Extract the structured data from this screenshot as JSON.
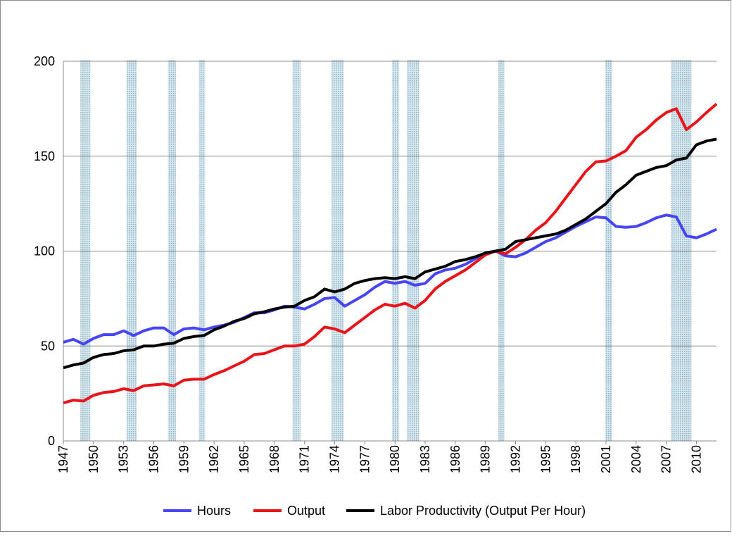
{
  "chart_data": {
    "type": "line",
    "x": [
      1947,
      1948,
      1949,
      1950,
      1951,
      1952,
      1953,
      1954,
      1955,
      1956,
      1957,
      1958,
      1959,
      1960,
      1961,
      1962,
      1963,
      1964,
      1965,
      1966,
      1967,
      1968,
      1969,
      1970,
      1971,
      1972,
      1973,
      1974,
      1975,
      1976,
      1977,
      1978,
      1979,
      1980,
      1981,
      1982,
      1983,
      1984,
      1985,
      1986,
      1987,
      1988,
      1989,
      1990,
      1991,
      1992,
      1993,
      1994,
      1995,
      1996,
      1997,
      1998,
      1999,
      2000,
      2001,
      2002,
      2003,
      2004,
      2005,
      2006,
      2007,
      2008,
      2009,
      2010,
      2011,
      2012
    ],
    "series": [
      {
        "name": "Hours",
        "color": "#4646f5",
        "values": [
          52,
          53.5,
          51,
          54,
          56,
          56,
          58,
          55.5,
          58,
          59.5,
          59.5,
          56,
          59,
          59.5,
          58.5,
          60,
          61,
          62.5,
          65,
          67.5,
          67.5,
          69,
          71,
          70.5,
          69.5,
          72,
          75,
          75.5,
          71,
          74,
          77,
          81,
          84,
          83,
          84,
          82,
          83,
          88,
          90,
          91,
          93,
          96,
          99,
          100,
          97.5,
          97,
          99,
          102,
          105,
          107,
          110,
          113,
          115.5,
          118,
          117.5,
          113,
          112.5,
          113,
          115,
          117.5,
          119,
          118,
          108,
          107,
          109,
          111.5
        ]
      },
      {
        "name": "Output",
        "color": "#e8141a",
        "values": [
          20,
          21.5,
          21,
          24,
          25.5,
          26,
          27.5,
          26.5,
          29,
          29.5,
          30,
          29,
          32,
          32.5,
          32.5,
          35,
          37,
          39.5,
          42,
          45.5,
          46,
          48,
          50,
          50,
          51,
          55,
          60,
          59,
          57,
          61,
          65,
          69,
          72,
          71,
          72.5,
          70,
          74,
          80,
          84,
          87,
          90,
          94,
          98,
          100,
          98.5,
          102,
          106,
          111,
          115,
          121,
          128,
          135,
          142,
          147,
          147.5,
          150,
          153,
          160,
          164,
          169,
          173,
          175,
          164,
          168,
          173,
          177.5
        ]
      },
      {
        "name": "Labor Productivity (Output Per Hour)",
        "color": "#000000",
        "values": [
          38.5,
          40,
          41,
          44,
          45.5,
          46,
          47.5,
          48,
          50,
          50,
          51,
          51.5,
          54,
          55,
          55.5,
          58.5,
          60.5,
          63,
          64.5,
          67,
          68,
          69.5,
          70.5,
          71,
          74,
          76,
          80,
          78.5,
          80,
          83,
          84.5,
          85.5,
          86,
          85.5,
          86.5,
          85.5,
          89,
          90.5,
          92,
          94.5,
          95.5,
          97,
          99,
          100,
          101,
          105,
          106,
          107,
          108,
          109,
          111,
          114,
          117,
          121,
          125,
          131,
          135,
          140,
          142,
          144,
          145,
          148,
          149,
          156,
          158,
          159
        ]
      }
    ],
    "shaded_regions": [
      [
        1948.7,
        1949.7
      ],
      [
        1953.3,
        1954.3
      ],
      [
        1957.4,
        1958.2
      ],
      [
        1960.5,
        1961.1
      ],
      [
        1969.8,
        1970.6
      ],
      [
        1973.7,
        1974.9
      ],
      [
        1979.7,
        1980.4
      ],
      [
        1981.2,
        1982.4
      ],
      [
        1990.3,
        1990.9
      ],
      [
        2000.9,
        2001.6
      ],
      [
        2007.5,
        2009.5
      ]
    ],
    "xlim": [
      1947,
      2012
    ],
    "xticks": [
      1947,
      1950,
      1953,
      1956,
      1959,
      1962,
      1965,
      1968,
      1971,
      1974,
      1977,
      1980,
      1983,
      1986,
      1989,
      1992,
      1995,
      1998,
      2001,
      2004,
      2007,
      2010
    ],
    "ylim": [
      0,
      200
    ],
    "yticks": [
      0,
      50,
      100,
      150,
      200
    ],
    "grid": true,
    "legend": "bottom"
  }
}
